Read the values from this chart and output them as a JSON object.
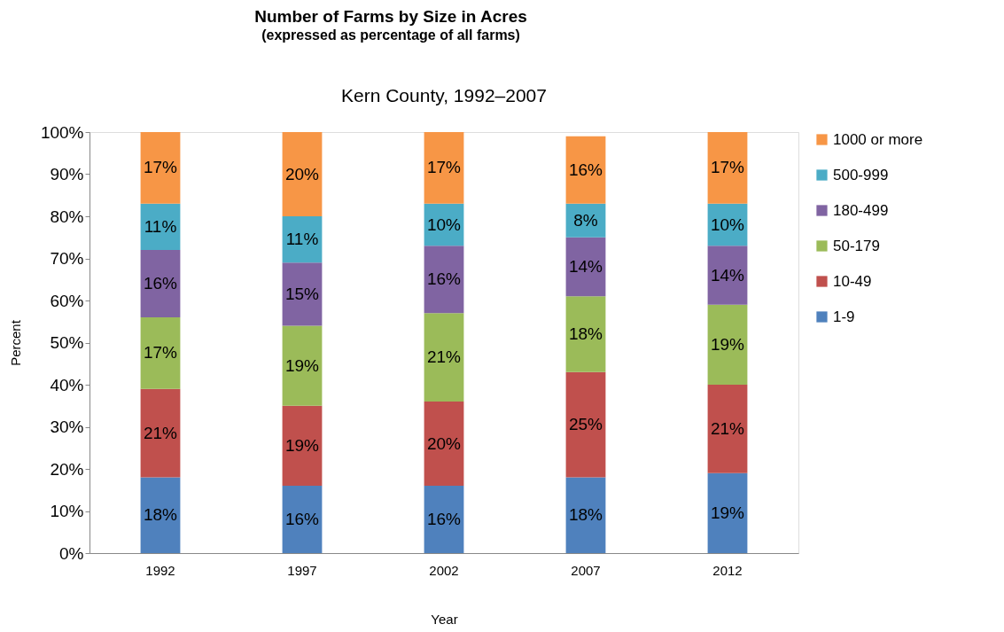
{
  "chart_data": {
    "type": "bar",
    "stacked": true,
    "title": "Number of Farms by Size in Acres",
    "subtitle": "(expressed as percentage of all farms)",
    "annotations": [
      "Kern County, 1992–2007"
    ],
    "xlabel": "Year",
    "ylabel": "Percent",
    "categories": [
      "1992",
      "1997",
      "2002",
      "2007",
      "2012"
    ],
    "series": [
      {
        "name": "1-9",
        "color": "#4f81bd",
        "values": [
          18,
          16,
          16,
          18,
          19
        ],
        "value_labels": [
          "18%",
          "16%",
          "16%",
          "18%",
          "19%"
        ]
      },
      {
        "name": "10-49",
        "color": "#c0504d",
        "values": [
          21,
          19,
          20,
          25,
          21
        ],
        "value_labels": [
          "21%",
          "19%",
          "20%",
          "25%",
          "21%"
        ]
      },
      {
        "name": "50-179",
        "color": "#9bbb59",
        "values": [
          17,
          19,
          21,
          18,
          19
        ],
        "value_labels": [
          "17%",
          "19%",
          "21%",
          "18%",
          "19%"
        ]
      },
      {
        "name": "180-499",
        "color": "#8064a2",
        "values": [
          16,
          15,
          16,
          14,
          14
        ],
        "value_labels": [
          "16%",
          "15%",
          "16%",
          "14%",
          "14%"
        ]
      },
      {
        "name": "500-999",
        "color": "#4bacc6",
        "values": [
          11,
          11,
          10,
          8,
          10
        ],
        "value_labels": [
          "11%",
          "11%",
          "10%",
          "8%",
          "10%"
        ]
      },
      {
        "name": "1000 or more",
        "color": "#f79646",
        "values": [
          17,
          20,
          17,
          16,
          17
        ],
        "value_labels": [
          "17%",
          "20%",
          "17%",
          "16%",
          "17%"
        ]
      }
    ],
    "ylim": [
      0,
      100
    ],
    "yticks": [
      {
        "value": 0,
        "label": "0%"
      },
      {
        "value": 10,
        "label": "10%"
      },
      {
        "value": 20,
        "label": "20%"
      },
      {
        "value": 30,
        "label": "30%"
      },
      {
        "value": 40,
        "label": "40%"
      },
      {
        "value": 50,
        "label": "50%"
      },
      {
        "value": 60,
        "label": "60%"
      },
      {
        "value": 70,
        "label": "70%"
      },
      {
        "value": 80,
        "label": "80%"
      },
      {
        "value": 90,
        "label": "90%"
      },
      {
        "value": 100,
        "label": "100%"
      }
    ],
    "grid": false,
    "legend": "right"
  }
}
